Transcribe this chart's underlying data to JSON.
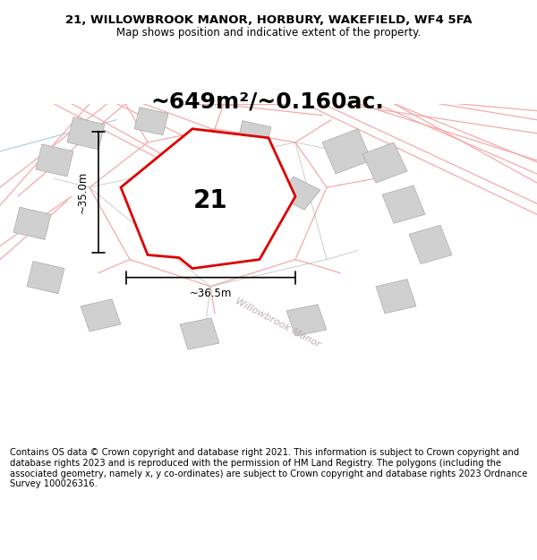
{
  "title_line1": "21, WILLOWBROOK MANOR, HORBURY, WAKEFIELD, WF4 5FA",
  "title_line2": "Map shows position and indicative extent of the property.",
  "area_text": "~649m²/~0.160ac.",
  "label_21": "21",
  "dim_width": "~36.5m",
  "dim_height": "~35.0m",
  "road_label": "Willowbrook Manor",
  "footer": "Contains OS data © Crown copyright and database right 2021. This information is subject to Crown copyright and database rights 2023 and is reproduced with the permission of HM Land Registry. The polygons (including the associated geometry, namely x, y co-ordinates) are subject to Crown copyright and database rights 2023 Ordnance Survey 100026316.",
  "bg_color": "#ffffff",
  "map_bg": "#f7f3f3",
  "plot_fill": "#ffffff",
  "building_fill": "#d0d0d0",
  "red_color": "#dd0000",
  "pink_color": "#f5aaaa",
  "gray_color": "#999999",
  "black_color": "#000000",
  "road_text_color": "#c0b0b0",
  "blue_color": "#aaccdd",
  "title_fontsize": 9.5,
  "subtitle_fontsize": 8.5,
  "area_fontsize": 18,
  "label_fontsize": 20,
  "dim_fontsize": 8.5,
  "road_fontsize": 8,
  "footer_fontsize": 7.2
}
